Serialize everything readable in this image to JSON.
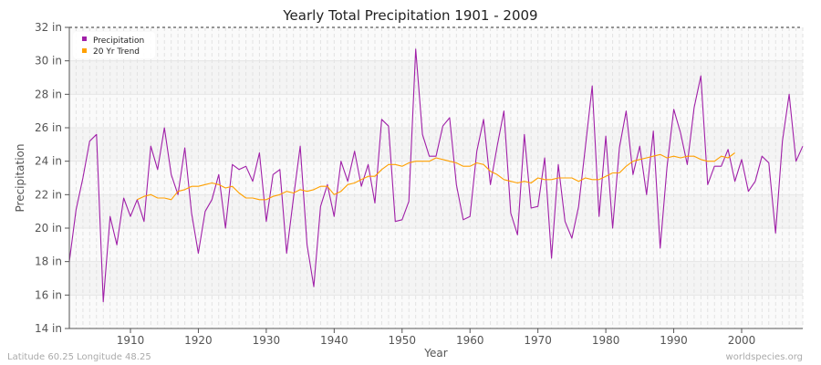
{
  "chart_data": {
    "type": "line",
    "title": "Yearly Total Precipitation 1901 - 2009",
    "xlabel": "Year",
    "ylabel": "Precipitation",
    "xlim": [
      1901,
      2009
    ],
    "ylim": [
      14,
      32
    ],
    "y_ticks": [
      "14 in",
      "16 in",
      "18 in",
      "20 in",
      "22 in",
      "24 in",
      "26 in",
      "28 in",
      "30 in",
      "32 in"
    ],
    "x_ticks": [
      "1910",
      "1920",
      "1930",
      "1940",
      "1950",
      "1960",
      "1970",
      "1980",
      "1990",
      "2000"
    ],
    "grid": true,
    "legend_placement": "top-left",
    "series": [
      {
        "name": "Precipitation",
        "color": "#a020a8",
        "start_year": 1901,
        "values": [
          18.0,
          21.1,
          23.0,
          25.2,
          25.6,
          15.6,
          20.7,
          19.0,
          21.8,
          20.7,
          21.7,
          20.4,
          24.9,
          23.5,
          26.0,
          23.2,
          22.0,
          24.8,
          20.9,
          18.5,
          21.0,
          21.7,
          23.2,
          20.0,
          23.8,
          23.5,
          23.7,
          22.8,
          24.5,
          20.4,
          23.2,
          23.5,
          18.5,
          21.8,
          24.9,
          19.0,
          16.5,
          21.3,
          22.6,
          20.7,
          24.0,
          22.8,
          24.6,
          22.5,
          23.8,
          21.5,
          26.5,
          26.1,
          20.4,
          20.5,
          21.6,
          30.7,
          25.6,
          24.3,
          24.3,
          26.1,
          26.6,
          22.6,
          20.5,
          20.7,
          24.6,
          26.5,
          22.6,
          24.9,
          27.0,
          20.9,
          19.6,
          25.6,
          21.2,
          21.3,
          24.2,
          18.2,
          23.8,
          20.4,
          19.4,
          21.3,
          24.9,
          28.5,
          20.7,
          25.5,
          20.0,
          24.8,
          27.0,
          23.2,
          24.9,
          22.0,
          25.8,
          18.8,
          23.6,
          27.1,
          25.7,
          23.8,
          27.2,
          29.1,
          22.6,
          23.7,
          23.7,
          24.7,
          22.8,
          24.1,
          22.2,
          22.8,
          24.3,
          23.9,
          19.7,
          25.2,
          28.0,
          24.0,
          24.9
        ]
      },
      {
        "name": "20 Yr Trend",
        "color": "#ffa000",
        "start_year": 1911,
        "values": [
          21.7,
          21.9,
          22.0,
          21.8,
          21.8,
          21.7,
          22.2,
          22.3,
          22.5,
          22.5,
          22.6,
          22.7,
          22.6,
          22.4,
          22.5,
          22.1,
          21.8,
          21.8,
          21.7,
          21.7,
          21.9,
          22.0,
          22.2,
          22.1,
          22.3,
          22.2,
          22.3,
          22.5,
          22.5,
          22.0,
          22.2,
          22.6,
          22.7,
          22.9,
          23.1,
          23.1,
          23.5,
          23.8,
          23.8,
          23.7,
          23.9,
          24.0,
          24.0,
          24.0,
          24.2,
          24.1,
          24.0,
          23.9,
          23.7,
          23.7,
          23.9,
          23.8,
          23.4,
          23.2,
          22.9,
          22.8,
          22.7,
          22.8,
          22.7,
          23.0,
          22.9,
          22.9,
          23.0,
          23.0,
          23.0,
          22.8,
          23.0,
          22.9,
          22.9,
          23.1,
          23.3,
          23.3,
          23.7,
          24.0,
          24.1,
          24.2,
          24.3,
          24.4,
          24.2,
          24.3,
          24.2,
          24.3,
          24.3,
          24.1,
          24.0,
          24.0,
          24.3,
          24.2,
          24.5
        ]
      }
    ]
  },
  "footer": {
    "location": "Latitude 60.25 Longitude 48.25",
    "source": "worldspecies.org"
  }
}
